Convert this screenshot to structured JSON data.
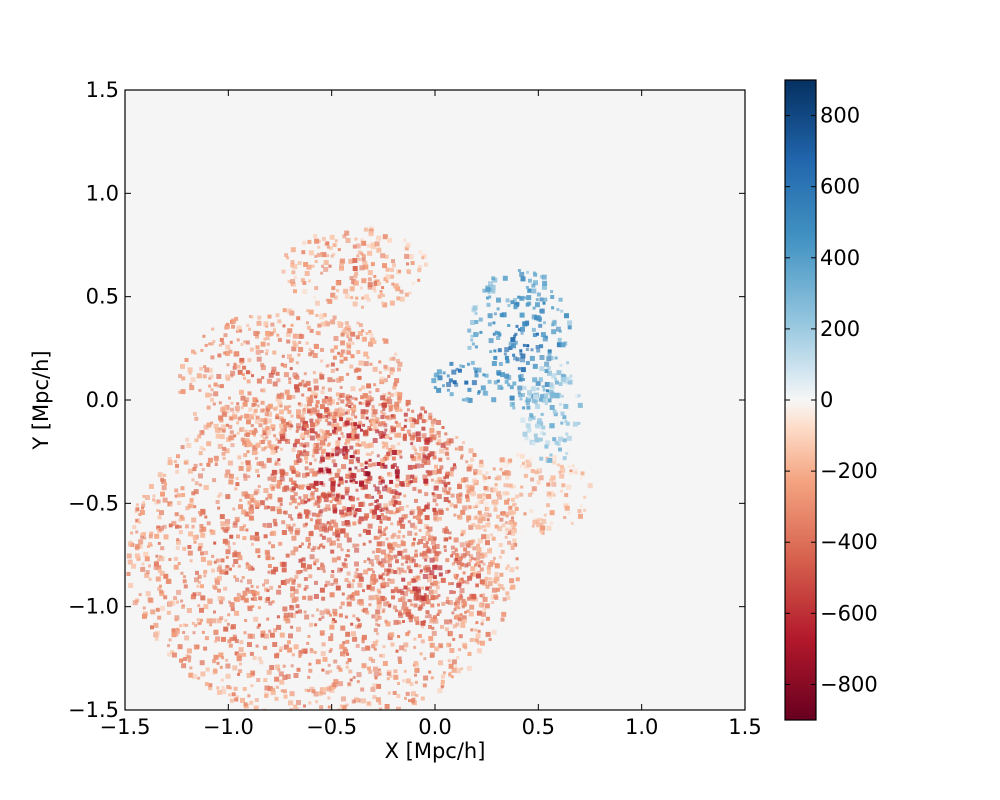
{
  "chart_data": {
    "type": "heatmap",
    "title": "",
    "xlabel": "X [Mpc/h]",
    "ylabel": "Y [Mpc/h]",
    "xlim": [
      -1.5,
      1.5
    ],
    "ylim": [
      -1.5,
      1.5
    ],
    "x_ticks": [
      -1.5,
      -1.0,
      -0.5,
      0.0,
      0.5,
      1.0,
      1.5
    ],
    "y_ticks": [
      -1.5,
      -1.0,
      -0.5,
      0.0,
      0.5,
      1.0,
      1.5
    ],
    "x_tick_labels": [
      "−1.5",
      "−1.0",
      "−0.5",
      "0.0",
      "0.5",
      "1.0",
      "1.5"
    ],
    "y_tick_labels": [
      "−1.5",
      "−1.0",
      "−0.5",
      "0.0",
      "0.5",
      "1.0",
      "1.5"
    ],
    "grid": false,
    "background_color": "#f5f5f5",
    "colormap": "RdBu",
    "colorbar": {
      "range": [
        -900,
        900
      ],
      "ticks": [
        -800,
        -600,
        -400,
        -200,
        0,
        200,
        400,
        600,
        800
      ],
      "tick_labels": [
        "−800",
        "−600",
        "−400",
        "−200",
        "0",
        "200",
        "400",
        "600",
        "800"
      ],
      "stops": [
        {
          "value": -900,
          "color": "#67001f"
        },
        {
          "value": -675,
          "color": "#b2182b"
        },
        {
          "value": -450,
          "color": "#d6604d"
        },
        {
          "value": -225,
          "color": "#f4a582"
        },
        {
          "value": -80,
          "color": "#fddbc7"
        },
        {
          "value": 0,
          "color": "#f7f7f7"
        },
        {
          "value": 80,
          "color": "#d1e5f0"
        },
        {
          "value": 225,
          "color": "#92c5de"
        },
        {
          "value": 450,
          "color": "#4393c3"
        },
        {
          "value": 675,
          "color": "#2166ac"
        },
        {
          "value": 900,
          "color": "#053061"
        }
      ]
    },
    "regions": [
      {
        "x": -0.55,
        "y": -0.75,
        "rx": 0.95,
        "ry": 0.8,
        "value": -420
      },
      {
        "x": -0.7,
        "y": 0.1,
        "rx": 0.55,
        "ry": 0.35,
        "value": -390
      },
      {
        "x": -0.35,
        "y": -0.3,
        "rx": 0.45,
        "ry": 0.35,
        "value": -720
      },
      {
        "x": -0.05,
        "y": -0.85,
        "rx": 0.3,
        "ry": 0.25,
        "value": -600
      },
      {
        "x": 0.45,
        "y": -0.45,
        "rx": 0.3,
        "ry": 0.2,
        "value": -250
      },
      {
        "x": 0.4,
        "y": 0.3,
        "rx": 0.25,
        "ry": 0.35,
        "value": 620
      },
      {
        "x": 0.12,
        "y": 0.1,
        "rx": 0.15,
        "ry": 0.1,
        "value": 720
      },
      {
        "x": 0.55,
        "y": -0.05,
        "rx": 0.15,
        "ry": 0.25,
        "value": 300
      },
      {
        "x": -0.4,
        "y": 0.65,
        "rx": 0.35,
        "ry": 0.2,
        "value": -320
      }
    ]
  }
}
